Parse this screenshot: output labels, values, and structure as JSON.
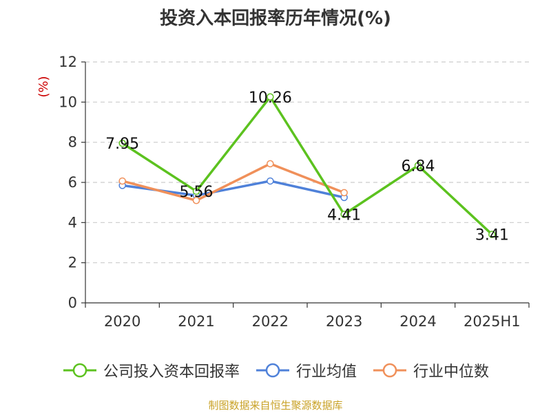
{
  "colors": {
    "company": "#5cc21f",
    "industry_avg": "#4f81d9",
    "industry_median": "#f0905a",
    "axis": "#333333",
    "grid": "#cccccc",
    "unit": "#cc0000",
    "source": "#c9a227"
  },
  "chart_data": {
    "type": "line",
    "title": "投资入本回报率历年情况(%)",
    "ylabel": "(%)",
    "categories": [
      "2020",
      "2021",
      "2022",
      "2023",
      "2024",
      "2025H1"
    ],
    "ylim": [
      0,
      12
    ],
    "yticks": [
      0,
      2,
      4,
      6,
      8,
      10,
      12
    ],
    "grid": true,
    "legend_position": "bottom",
    "series": [
      {
        "name": "公司投入资本回报率",
        "color": "#5cc21f",
        "values": [
          7.95,
          5.56,
          10.26,
          4.41,
          6.84,
          3.41
        ],
        "labels": [
          "7.95",
          "5.56",
          "10.26",
          "4.41",
          "6.84",
          "3.41"
        ]
      },
      {
        "name": "行业均值",
        "color": "#4f81d9",
        "values": [
          5.85,
          5.35,
          6.07,
          5.25,
          null,
          null
        ]
      },
      {
        "name": "行业中位数",
        "color": "#f0905a",
        "values": [
          6.07,
          5.1,
          6.93,
          5.49,
          null,
          null
        ]
      }
    ]
  },
  "source_note": "制图数据来自恒生聚源数据库"
}
